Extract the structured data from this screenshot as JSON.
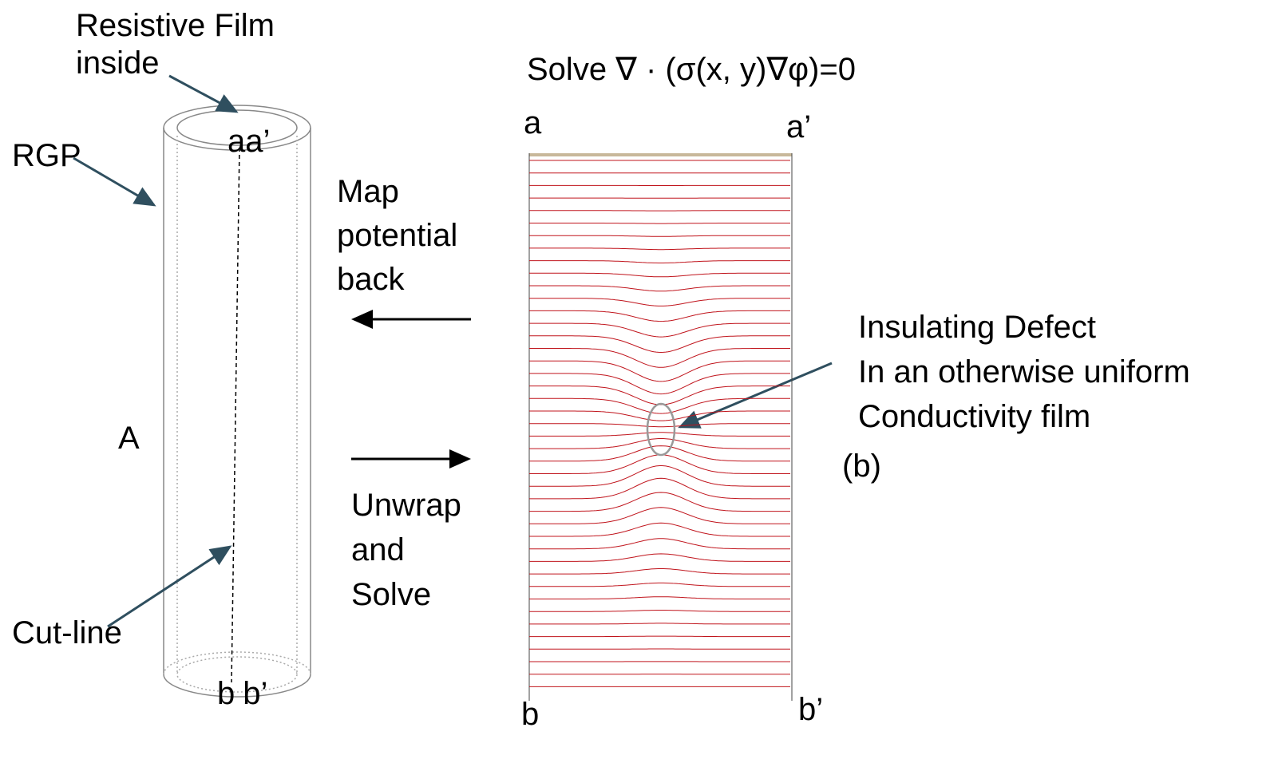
{
  "cylinder": {
    "film_label": [
      "Resistive Film",
      "inside"
    ],
    "rgp_label": "RGP",
    "side_label": "A",
    "cut_label": "Cut-line",
    "top_labels": [
      "a",
      "a’"
    ],
    "bottom_labels": [
      "b",
      "b’"
    ]
  },
  "steps": {
    "map_back": [
      "Map",
      "potential",
      "back"
    ],
    "unwrap": [
      "Unwrap",
      "and",
      "Solve"
    ]
  },
  "equation": "Solve ∇ · (σ(x, y)∇φ)=0",
  "domain": {
    "corners": {
      "top_left": "a",
      "top_right": "a’",
      "bottom_left": "b",
      "bottom_right": "b’"
    },
    "defect_label": [
      "Insulating Defect",
      "In an otherwise uniform",
      "Conductivity film"
    ],
    "panel_label": "(b)"
  }
}
